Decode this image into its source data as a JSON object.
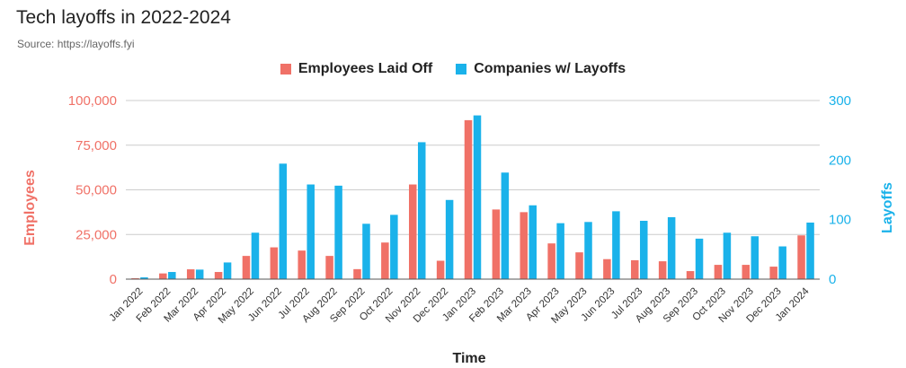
{
  "chart_data": {
    "type": "bar",
    "title": "Tech layoffs in 2022-2024",
    "subtitle": "Source: https://layoffs.fyi",
    "xlabel": "Time",
    "ylabel_left": "Employees",
    "ylabel_right": "Layoffs",
    "legend_position": "top-center",
    "grid": true,
    "categories": [
      "Jan 2022",
      "Feb 2022",
      "Mar 2022",
      "Apr 2022",
      "May 2022",
      "Jun 2022",
      "Jul 2022",
      "Aug 2022",
      "Sep 2022",
      "Oct 2022",
      "Nov 2022",
      "Dec 2022",
      "Jan 2023",
      "Feb 2023",
      "Mar 2023",
      "Apr 2023",
      "May 2023",
      "Jun 2023",
      "Jul 2023",
      "Aug 2023",
      "Sep 2023",
      "Oct 2023",
      "Nov 2023",
      "Dec 2023",
      "Jan 2024"
    ],
    "left_axis": {
      "min": 0,
      "max": 100000,
      "ticks": [
        "0",
        "25,000",
        "50,000",
        "75,000",
        "100,000"
      ],
      "tick_values": [
        0,
        25000,
        50000,
        75000,
        100000
      ]
    },
    "right_axis": {
      "min": 0,
      "max": 300,
      "ticks": [
        "0",
        "100",
        "200",
        "300"
      ],
      "tick_values": [
        0,
        100,
        200,
        300
      ]
    },
    "series": [
      {
        "name": "Employees Laid Off",
        "axis": "left",
        "color": "#f07167",
        "values": [
          500,
          3200,
          5500,
          4000,
          13000,
          17800,
          16000,
          13000,
          5600,
          20500,
          53000,
          10300,
          89000,
          39000,
          37500,
          20000,
          15000,
          11200,
          10600,
          10000,
          4500,
          8000,
          8000,
          7000,
          24500
        ]
      },
      {
        "name": "Companies w/ Layoffs",
        "axis": "right",
        "color": "#1ab2ea",
        "values": [
          3,
          12,
          16,
          28,
          78,
          194,
          159,
          157,
          93,
          108,
          230,
          133,
          275,
          179,
          124,
          94,
          96,
          114,
          98,
          104,
          68,
          78,
          72,
          55,
          95
        ]
      }
    ]
  }
}
